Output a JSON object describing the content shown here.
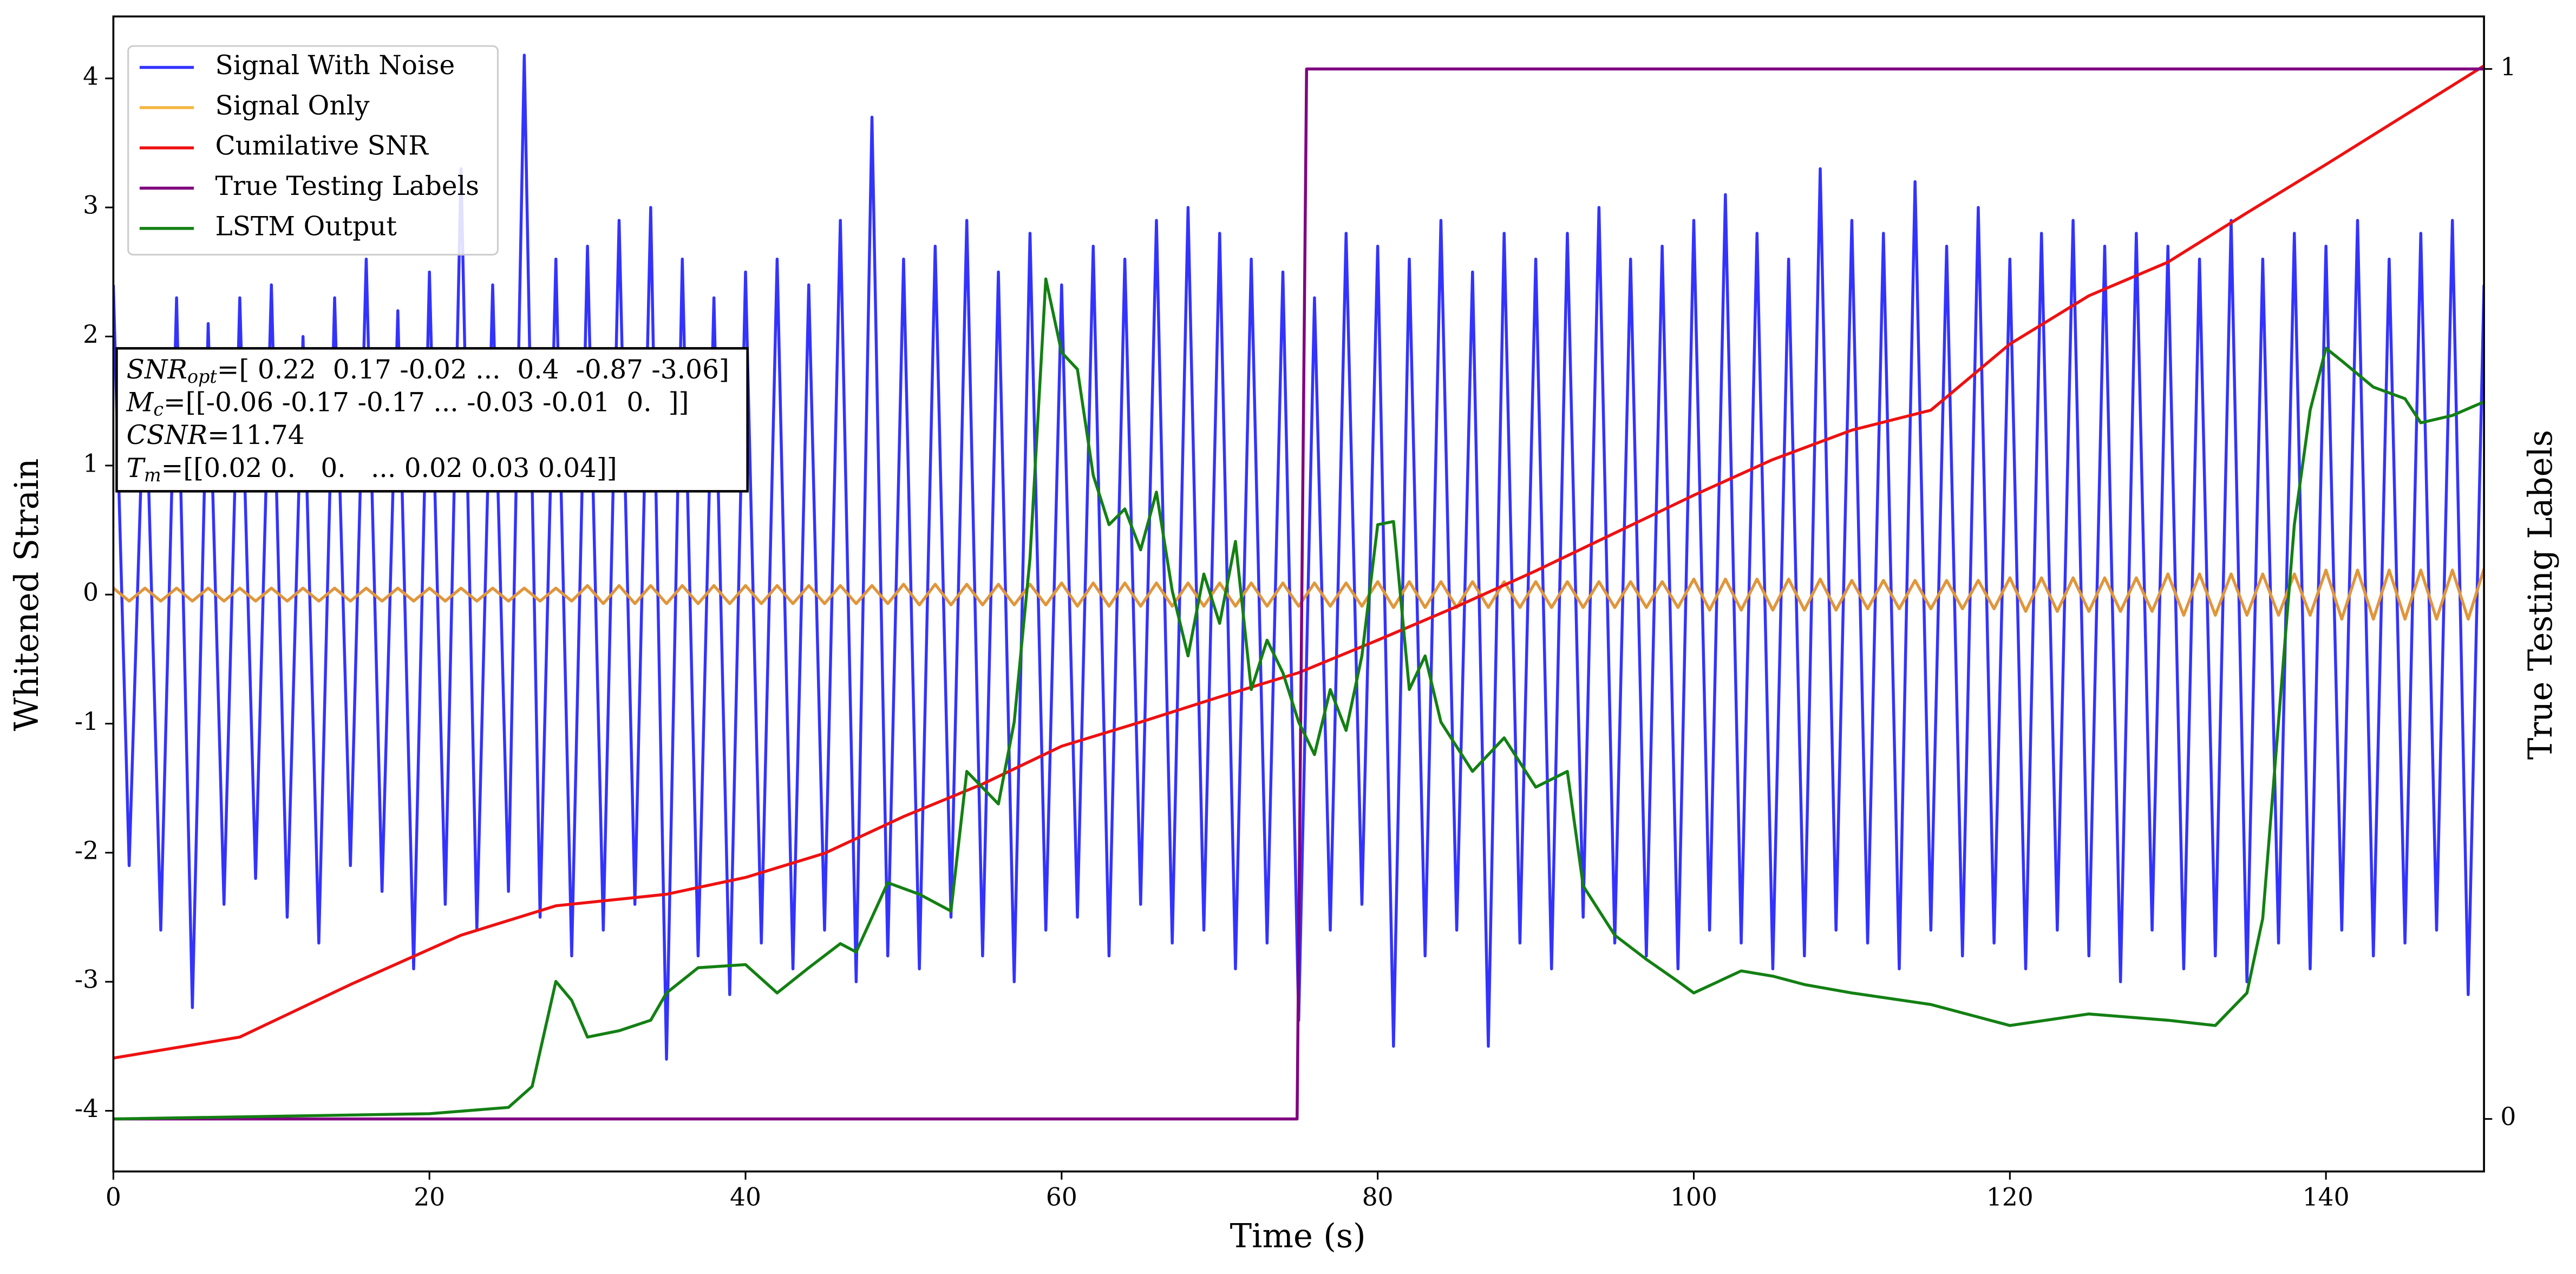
{
  "chart_data": {
    "type": "line",
    "xlabel": "Time (s)",
    "ylabel": "Whitened Strain",
    "y2label": "True Testing Labels",
    "xlim": [
      0,
      150
    ],
    "ylim": [
      -4.47,
      4.48
    ],
    "y2lim": [
      -0.05,
      1.05
    ],
    "xticks": [
      0,
      20,
      40,
      60,
      80,
      100,
      120,
      140
    ],
    "yticks": [
      -4,
      -3,
      -2,
      -1,
      0,
      1,
      2,
      3,
      4
    ],
    "y2ticks": [
      0,
      1
    ],
    "legend": "upper left",
    "annotations": [
      {
        "symbol": "SNR",
        "sub": "opt",
        "text": "=[ 0.22  0.17 -0.02 ...  0.4  -0.87 -3.06]"
      },
      {
        "symbol": "M",
        "sub": "c",
        "text": "=[[-0.06 -0.17 -0.17 ... -0.03 -0.01  0.  ]]"
      },
      {
        "symbol": "CSNR",
        "text": "=11.74"
      },
      {
        "symbol": "T",
        "sub": "m",
        "text": "=[[0.02 0.   0.   ... 0.02 0.03 0.04]]"
      }
    ],
    "series": [
      {
        "name": "Signal With Noise",
        "color": "#3333ff",
        "x": [
          0,
          1,
          2,
          3,
          4,
          5,
          6,
          7,
          8,
          9,
          10,
          11,
          12,
          13,
          14,
          15,
          16,
          17,
          18,
          19,
          20,
          21,
          22,
          23,
          24,
          25,
          26,
          27,
          28,
          29,
          30,
          31,
          32,
          33,
          34,
          35,
          36,
          37,
          38,
          39,
          40,
          41,
          42,
          43,
          44,
          45,
          46,
          47,
          48,
          49,
          50,
          51,
          52,
          53,
          54,
          55,
          56,
          57,
          58,
          59,
          60,
          61,
          62,
          63,
          64,
          65,
          66,
          67,
          68,
          69,
          70,
          71,
          72,
          73,
          74,
          75,
          76,
          77,
          78,
          79,
          80,
          81,
          82,
          83,
          84,
          85,
          86,
          87,
          88,
          89,
          90,
          91,
          92,
          93,
          94,
          95,
          96,
          97,
          98,
          99,
          100,
          101,
          102,
          103,
          104,
          105,
          106,
          107,
          108,
          109,
          110,
          111,
          112,
          113,
          114,
          115,
          116,
          117,
          118,
          119,
          120,
          121,
          122,
          123,
          124,
          125,
          126,
          127,
          128,
          129,
          130,
          131,
          132,
          133,
          134,
          135,
          136,
          137,
          138,
          139,
          140,
          141,
          142,
          143,
          144,
          145,
          146,
          147,
          148,
          149,
          150
        ],
        "values": [
          2.4,
          -2.1,
          1.9,
          -2.6,
          2.3,
          -3.2,
          2.1,
          -2.4,
          2.3,
          -2.2,
          2.4,
          -2.5,
          2.0,
          -2.7,
          2.3,
          -2.1,
          2.6,
          -2.3,
          2.2,
          -2.9,
          2.5,
          -2.4,
          3.3,
          -2.6,
          2.4,
          -2.3,
          4.18,
          -2.5,
          2.6,
          -2.8,
          2.7,
          -2.6,
          2.9,
          -2.4,
          3.0,
          -3.6,
          2.6,
          -2.8,
          2.3,
          -3.1,
          2.5,
          -2.7,
          2.6,
          -2.9,
          2.4,
          -2.6,
          2.9,
          -3.0,
          3.7,
          -2.8,
          2.6,
          -2.9,
          2.7,
          -2.5,
          2.9,
          -2.8,
          2.5,
          -3.0,
          2.8,
          -2.6,
          2.4,
          -2.5,
          2.7,
          -2.8,
          2.6,
          -2.4,
          2.9,
          -2.7,
          3.0,
          -2.6,
          2.8,
          -2.9,
          2.6,
          -2.7,
          2.5,
          -3.3,
          2.3,
          -2.6,
          2.8,
          -2.4,
          2.7,
          -3.5,
          2.6,
          -2.8,
          2.9,
          -2.6,
          2.5,
          -3.5,
          2.8,
          -2.7,
          2.6,
          -2.9,
          2.8,
          -2.5,
          3.0,
          -2.7,
          2.6,
          -2.8,
          2.7,
          -2.9,
          2.9,
          -2.6,
          3.1,
          -2.7,
          2.8,
          -2.9,
          2.6,
          -2.8,
          3.3,
          -2.6,
          2.9,
          -2.7,
          2.8,
          -2.9,
          3.2,
          -2.6,
          2.7,
          -2.8,
          3.0,
          -2.7,
          2.6,
          -2.9,
          2.8,
          -2.6,
          2.9,
          -2.8,
          2.7,
          -3.0,
          2.8,
          -2.6,
          2.7,
          -2.9,
          2.6,
          -2.8,
          2.9,
          -3.0,
          2.6,
          -2.7,
          2.8,
          -2.9,
          2.7,
          -2.6,
          2.9,
          -2.8,
          2.6,
          -2.7,
          2.8,
          -2.6,
          2.9,
          -3.1,
          2.4
        ]
      },
      {
        "name": "Signal Only",
        "color": "#e0963a",
        "legend_color": "#f5b640",
        "x": [
          0,
          1,
          2,
          3,
          4,
          5,
          6,
          7,
          8,
          9,
          10,
          11,
          12,
          13,
          14,
          15,
          16,
          17,
          18,
          19,
          20,
          21,
          22,
          23,
          24,
          25,
          26,
          27,
          28,
          29,
          30,
          31,
          32,
          33,
          34,
          35,
          36,
          37,
          38,
          39,
          40,
          41,
          42,
          43,
          44,
          45,
          46,
          47,
          48,
          49,
          50,
          51,
          52,
          53,
          54,
          55,
          56,
          57,
          58,
          59,
          60,
          61,
          62,
          63,
          64,
          65,
          66,
          67,
          68,
          69,
          70,
          71,
          72,
          73,
          74,
          75,
          76,
          77,
          78,
          79,
          80,
          81,
          82,
          83,
          84,
          85,
          86,
          87,
          88,
          89,
          90,
          91,
          92,
          93,
          94,
          95,
          96,
          97,
          98,
          99,
          100,
          101,
          102,
          103,
          104,
          105,
          106,
          107,
          108,
          109,
          110,
          111,
          112,
          113,
          114,
          115,
          116,
          117,
          118,
          119,
          120,
          121,
          122,
          123,
          124,
          125,
          126,
          127,
          128,
          129,
          130,
          131,
          132,
          133,
          134,
          135,
          136,
          137,
          138,
          139,
          140,
          141,
          142,
          143,
          144,
          145,
          146,
          147,
          148,
          149,
          150
        ],
        "values": [
          0.05,
          -0.05,
          0.05,
          -0.05,
          0.05,
          -0.05,
          0.05,
          -0.05,
          0.05,
          -0.05,
          0.05,
          -0.05,
          0.05,
          -0.05,
          0.05,
          -0.05,
          0.05,
          -0.05,
          0.05,
          -0.05,
          0.05,
          -0.05,
          0.05,
          -0.05,
          0.05,
          -0.05,
          0.05,
          -0.05,
          0.05,
          -0.05,
          0.07,
          -0.07,
          0.07,
          -0.07,
          0.07,
          -0.07,
          0.07,
          -0.07,
          0.07,
          -0.07,
          0.07,
          -0.07,
          0.07,
          -0.07,
          0.07,
          -0.07,
          0.07,
          -0.07,
          0.07,
          -0.07,
          0.08,
          -0.08,
          0.08,
          -0.08,
          0.08,
          -0.08,
          0.08,
          -0.08,
          0.08,
          -0.08,
          0.09,
          -0.09,
          0.09,
          -0.09,
          0.09,
          -0.09,
          0.09,
          -0.09,
          0.09,
          -0.09,
          0.09,
          -0.09,
          0.09,
          -0.09,
          0.09,
          -0.09,
          0.09,
          -0.09,
          0.09,
          -0.09,
          0.1,
          -0.1,
          0.1,
          -0.1,
          0.1,
          -0.1,
          0.1,
          -0.1,
          0.1,
          -0.1,
          0.1,
          -0.1,
          0.1,
          -0.1,
          0.1,
          -0.1,
          0.1,
          -0.1,
          0.1,
          -0.1,
          0.12,
          -0.12,
          0.12,
          -0.12,
          0.12,
          -0.12,
          0.12,
          -0.12,
          0.12,
          -0.12,
          0.11,
          -0.11,
          0.11,
          -0.11,
          0.11,
          -0.11,
          0.11,
          -0.11,
          0.11,
          -0.11,
          0.13,
          -0.13,
          0.13,
          -0.13,
          0.13,
          -0.13,
          0.13,
          -0.13,
          0.13,
          -0.13,
          0.16,
          -0.16,
          0.16,
          -0.16,
          0.16,
          -0.16,
          0.16,
          -0.16,
          0.16,
          -0.16,
          0.19,
          -0.19,
          0.19,
          -0.19,
          0.19,
          -0.19,
          0.19,
          -0.19,
          0.19,
          -0.19,
          0.2
        ]
      },
      {
        "name": "Cumilative SNR",
        "color": "#ee1111",
        "axis": "y2",
        "x": [
          0,
          8,
          15,
          22,
          28,
          35,
          40,
          45,
          50,
          55,
          60,
          65,
          70,
          75,
          80,
          85,
          90,
          95,
          100,
          105,
          110,
          115,
          120,
          125,
          130,
          135,
          140,
          145,
          150
        ],
        "values": [
          0.058,
          0.078,
          0.128,
          0.175,
          0.203,
          0.214,
          0.23,
          0.253,
          0.288,
          0.319,
          0.355,
          0.378,
          0.402,
          0.425,
          0.456,
          0.488,
          0.522,
          0.558,
          0.594,
          0.628,
          0.656,
          0.675,
          0.738,
          0.784,
          0.816,
          0.863,
          0.909,
          0.956,
          1.003
        ]
      },
      {
        "name": "True Testing Labels",
        "color": "#800080",
        "axis": "y2",
        "x": [
          0,
          74.9,
          75.5,
          150
        ],
        "values": [
          0,
          0,
          1,
          1
        ]
      },
      {
        "name": "LSTM Output",
        "color": "#138013",
        "axis": "y2",
        "x": [
          0,
          20,
          25,
          26.5,
          28,
          29,
          30,
          32,
          34,
          35,
          37,
          40,
          42,
          44,
          46,
          47,
          49,
          51,
          53,
          54,
          56,
          57,
          58,
          59,
          60,
          61,
          62,
          63,
          64,
          65,
          66,
          67,
          68,
          69,
          70,
          71,
          72,
          73,
          74,
          75,
          76,
          77,
          78,
          79,
          80,
          81,
          82,
          83,
          84,
          86,
          88,
          90,
          92,
          93,
          95,
          97,
          99,
          100,
          103,
          105,
          107,
          110,
          115,
          118,
          120,
          125,
          130,
          133,
          135,
          136,
          138,
          139,
          140,
          141,
          143,
          145,
          146,
          148,
          150
        ],
        "values": [
          0,
          0.005,
          0.011,
          0.031,
          0.131,
          0.113,
          0.078,
          0.084,
          0.094,
          0.12,
          0.144,
          0.147,
          0.12,
          0.144,
          0.167,
          0.159,
          0.225,
          0.214,
          0.198,
          0.331,
          0.3,
          0.378,
          0.534,
          0.8,
          0.73,
          0.714,
          0.613,
          0.566,
          0.581,
          0.542,
          0.597,
          0.503,
          0.441,
          0.519,
          0.472,
          0.55,
          0.409,
          0.456,
          0.425,
          0.378,
          0.347,
          0.409,
          0.37,
          0.441,
          0.566,
          0.569,
          0.409,
          0.441,
          0.378,
          0.331,
          0.363,
          0.316,
          0.331,
          0.222,
          0.175,
          0.152,
          0.131,
          0.12,
          0.141,
          0.136,
          0.128,
          0.12,
          0.109,
          0.097,
          0.089,
          0.1,
          0.094,
          0.089,
          0.12,
          0.191,
          0.566,
          0.675,
          0.734,
          0.722,
          0.697,
          0.686,
          0.663,
          0.67,
          0.683
        ]
      }
    ]
  }
}
